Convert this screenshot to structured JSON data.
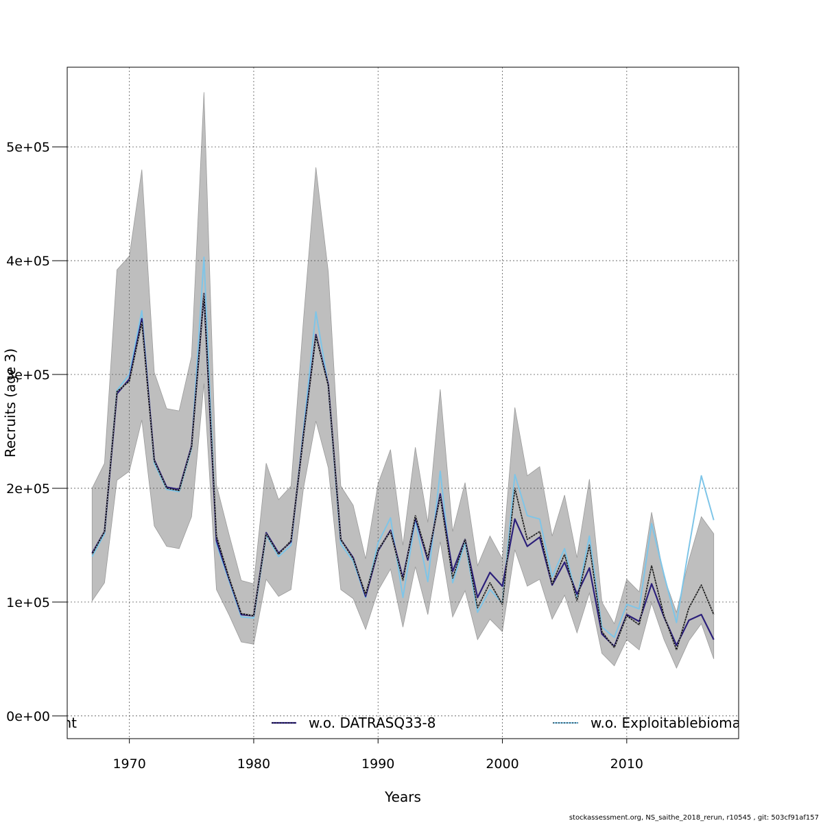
{
  "chart_data": {
    "type": "line",
    "xlabel": "Years",
    "ylabel": "Recruits (age 3)",
    "xlim": [
      1965,
      2019
    ],
    "ylim": [
      -20000,
      570000
    ],
    "x_ticks": [
      1970,
      1980,
      1990,
      2000,
      2010
    ],
    "x_tick_labels": [
      "1970",
      "1980",
      "1990",
      "2000",
      "2010"
    ],
    "y_ticks": [
      0,
      100000,
      200000,
      300000,
      400000,
      500000
    ],
    "y_tick_labels": [
      "0e+00",
      "1e+05",
      "2e+05",
      "3e+05",
      "4e+05",
      "5e+05"
    ],
    "grid": true,
    "legend_placement": "bottom",
    "legend_entries": [
      "nt",
      "w.o. DATRASQ33-8",
      "w.o. Exploitablebioma"
    ],
    "x": [
      1967,
      1968,
      1969,
      1970,
      1971,
      1972,
      1973,
      1974,
      1975,
      1976,
      1977,
      1978,
      1979,
      1980,
      1981,
      1982,
      1983,
      1984,
      1985,
      1986,
      1987,
      1988,
      1989,
      1990,
      1991,
      1992,
      1993,
      1994,
      1995,
      1996,
      1997,
      1998,
      1999,
      2000,
      2001,
      2002,
      2003,
      2004,
      2005,
      2006,
      2007,
      2008,
      2009,
      2010,
      2011,
      2012,
      2013,
      2014,
      2015,
      2016,
      2017
    ],
    "confidence_band": {
      "color": "#bebebe",
      "upper": [
        200000,
        222000,
        392000,
        404000,
        480000,
        302000,
        270000,
        268000,
        316000,
        548000,
        203000,
        160000,
        119000,
        116000,
        222000,
        190000,
        202000,
        348000,
        482000,
        390000,
        202000,
        185000,
        138000,
        204000,
        234000,
        150000,
        236000,
        170000,
        287000,
        162000,
        205000,
        132000,
        158000,
        138000,
        271000,
        211000,
        219000,
        158000,
        194000,
        139000,
        208000,
        100000,
        81000,
        120000,
        109000,
        179000,
        122000,
        91000,
        137000,
        175000,
        160000
      ],
      "lower": [
        101000,
        117000,
        207000,
        215000,
        260000,
        167000,
        149000,
        147000,
        175000,
        292000,
        111000,
        89000,
        65000,
        63000,
        120000,
        105000,
        111000,
        200000,
        259000,
        218000,
        111000,
        103000,
        76000,
        110000,
        129000,
        78000,
        131000,
        89000,
        153000,
        87000,
        110000,
        67000,
        85000,
        74000,
        146000,
        114000,
        120000,
        85000,
        106000,
        73000,
        108000,
        55000,
        44000,
        67000,
        58000,
        99000,
        67000,
        42000,
        66000,
        81000,
        50000
      ]
    },
    "series": [
      {
        "name": "nt",
        "color": "#000000",
        "style": "solid",
        "values": [
          142000,
          162000,
          285000,
          294000,
          346000,
          224000,
          200000,
          198000,
          236000,
          371000,
          158000,
          122000,
          90000,
          88000,
          160000,
          142000,
          154000,
          246000,
          334000,
          290000,
          155000,
          138000,
          107000,
          146000,
          162000,
          119000,
          176000,
          139000,
          193000,
          121000,
          155000,
          95000,
          117000,
          98000,
          200000,
          155000,
          162000,
          116000,
          142000,
          101000,
          150000,
          74000,
          60000,
          88000,
          80000,
          132000,
          88000,
          58000,
          95000,
          115000,
          89000
        ]
      },
      {
        "name": "w.o. DATRASQ33-8",
        "color": "#2b1f7a",
        "style": "solid",
        "values": [
          143000,
          162000,
          283000,
          296000,
          349000,
          225000,
          201000,
          199000,
          237000,
          371000,
          154000,
          121000,
          89000,
          88000,
          161000,
          143000,
          153000,
          247000,
          335000,
          291000,
          155000,
          139000,
          105000,
          145000,
          163000,
          121000,
          174000,
          137000,
          195000,
          127000,
          155000,
          104000,
          126000,
          114000,
          173000,
          149000,
          157000,
          115000,
          135000,
          107000,
          130000,
          72000,
          61000,
          89000,
          83000,
          116000,
          87000,
          62000,
          84000,
          89000,
          67000
        ]
      },
      {
        "name": "w.o. Exploitablebioma",
        "color": "#7ec5e8",
        "style": "solid",
        "values": [
          140000,
          160000,
          286000,
          300000,
          356000,
          222000,
          199000,
          197000,
          235000,
          403000,
          151000,
          119000,
          87000,
          86000,
          159000,
          140000,
          150000,
          251000,
          355000,
          290000,
          151000,
          136000,
          104000,
          152000,
          174000,
          104000,
          172000,
          118000,
          215000,
          117000,
          152000,
          91000,
          111000,
          99000,
          212000,
          176000,
          173000,
          122000,
          147000,
          103000,
          158000,
          78000,
          69000,
          98000,
          94000,
          169000,
          124000,
          82000,
          148000,
          211000,
          172000
        ]
      }
    ]
  },
  "footer": "stockassessment.org, NS_saithe_2018_rerun, r10545 , git: 503cf91af157"
}
